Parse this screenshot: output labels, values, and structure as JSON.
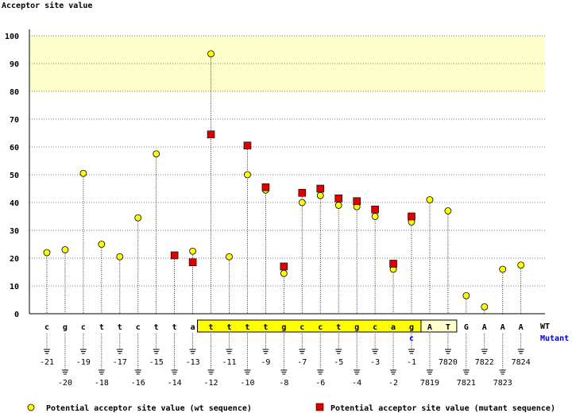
{
  "chart_data": {
    "type": "scatter",
    "ylabel": "Acceptor site value",
    "ylim": [
      0,
      100
    ],
    "yticks": [
      0,
      10,
      20,
      30,
      40,
      50,
      60,
      70,
      80,
      90,
      100
    ],
    "highlight_band": [
      80,
      100
    ],
    "row_labels": {
      "wt": "WT",
      "mutant": "Mutant"
    },
    "positions": [
      {
        "pos": "-21",
        "base": "c",
        "wt": 22
      },
      {
        "pos": "-20",
        "base": "g",
        "wt": 23
      },
      {
        "pos": "-19",
        "base": "c",
        "wt": 50.5
      },
      {
        "pos": "-18",
        "base": "t",
        "wt": 25
      },
      {
        "pos": "-17",
        "base": "t",
        "wt": 20.5
      },
      {
        "pos": "-16",
        "base": "c",
        "wt": 34.5
      },
      {
        "pos": "-15",
        "base": "t",
        "wt": 57.5
      },
      {
        "pos": "-14",
        "base": "t",
        "wt": 21,
        "mut": 21
      },
      {
        "pos": "-13",
        "base": "a",
        "wt": 22.5,
        "mut": 18.5
      },
      {
        "pos": "-12",
        "base": "t",
        "wt": 93.5,
        "mut": 64.5
      },
      {
        "pos": "-11",
        "base": "t",
        "wt": 20.5
      },
      {
        "pos": "-10",
        "base": "t",
        "wt": 50,
        "mut": 60.5
      },
      {
        "pos": "-9",
        "base": "t",
        "wt": 44.5,
        "mut": 45.5
      },
      {
        "pos": "-8",
        "base": "g",
        "wt": 14.5,
        "mut": 17
      },
      {
        "pos": "-7",
        "base": "c",
        "wt": 40,
        "mut": 43.5
      },
      {
        "pos": "-6",
        "base": "c",
        "wt": 42.5,
        "mut": 45
      },
      {
        "pos": "-5",
        "base": "t",
        "wt": 39,
        "mut": 41.5
      },
      {
        "pos": "-4",
        "base": "g",
        "wt": 38.5,
        "mut": 40.5
      },
      {
        "pos": "-3",
        "base": "c",
        "wt": 35,
        "mut": 37.5
      },
      {
        "pos": "-2",
        "base": "a",
        "wt": 16,
        "mut": 18
      },
      {
        "pos": "-1",
        "base": "g",
        "wt": 33,
        "mut": 35,
        "mutant_base": "c"
      },
      {
        "pos": "7819",
        "base": "A",
        "wt": 41
      },
      {
        "pos": "7820",
        "base": "T",
        "wt": 37
      },
      {
        "pos": "7821",
        "base": "G",
        "wt": 6.5
      },
      {
        "pos": "7822",
        "base": "A",
        "wt": 2.5
      },
      {
        "pos": "7823",
        "base": "A",
        "wt": 16
      },
      {
        "pos": "7824",
        "base": "A",
        "wt": 17.5
      }
    ],
    "legend": {
      "wt": "Potential acceptor site value (wt sequence)",
      "mutant": "Potential acceptor site value (mutant sequence)"
    },
    "colors": {
      "wt": "#ffff00",
      "mutant": "#dd0000",
      "intron_box": "#ffff00",
      "exon_box": "#ffffcc",
      "band": "#ffffcc"
    }
  }
}
